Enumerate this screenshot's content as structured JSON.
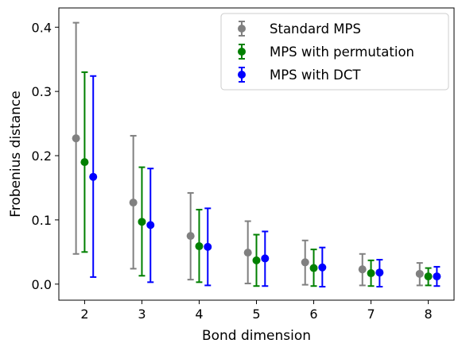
{
  "chart_data": {
    "type": "scatter",
    "subtype": "errorbar",
    "title": "",
    "xlabel": "Bond dimension",
    "ylabel": "Frobenius distance",
    "x": [
      2,
      3,
      4,
      5,
      6,
      7,
      8
    ],
    "x_ticks": [
      "2",
      "3",
      "4",
      "5",
      "6",
      "7",
      "8"
    ],
    "y_ticks": [
      "0.0",
      "0.1",
      "0.2",
      "0.3",
      "0.4"
    ],
    "xlim": [
      1.55,
      8.45
    ],
    "ylim": [
      -0.025,
      0.43
    ],
    "grid": false,
    "legend_position": "top-right",
    "series": [
      {
        "name": "Standard MPS",
        "color": "#808080",
        "values": [
          0.227,
          0.127,
          0.075,
          0.049,
          0.034,
          0.023,
          0.016
        ],
        "err_low": [
          0.047,
          0.024,
          0.007,
          0.001,
          -0.001,
          -0.002,
          -0.002
        ],
        "err_high": [
          0.407,
          0.231,
          0.142,
          0.098,
          0.068,
          0.047,
          0.033
        ]
      },
      {
        "name": "MPS with permutation",
        "color": "#008000",
        "values": [
          0.19,
          0.097,
          0.059,
          0.037,
          0.025,
          0.017,
          0.012
        ],
        "err_low": [
          0.05,
          0.013,
          0.003,
          -0.003,
          -0.003,
          -0.003,
          -0.002
        ],
        "err_high": [
          0.33,
          0.182,
          0.116,
          0.077,
          0.054,
          0.037,
          0.025
        ]
      },
      {
        "name": "MPS with DCT",
        "color": "#0000ff",
        "values": [
          0.167,
          0.092,
          0.058,
          0.04,
          0.026,
          0.018,
          0.012
        ],
        "err_low": [
          0.011,
          0.003,
          -0.002,
          -0.003,
          -0.004,
          -0.004,
          -0.003
        ],
        "err_high": [
          0.324,
          0.18,
          0.118,
          0.082,
          0.057,
          0.038,
          0.027
        ]
      }
    ]
  }
}
